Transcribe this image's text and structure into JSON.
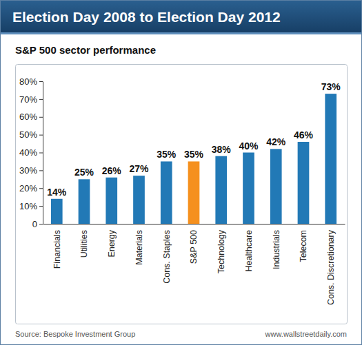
{
  "chart_data": {
    "type": "bar",
    "title": "Election Day 2008 to Election Day 2012",
    "subtitle": "S&P 500 sector performance",
    "categories": [
      "Financials",
      "Utilities",
      "Energy",
      "Materials",
      "Cons. Staples",
      "S&P 500",
      "Technology",
      "Healthcare",
      "Industrials",
      "Telecom",
      "Cons. Discretionary"
    ],
    "values": [
      14,
      25,
      26,
      27,
      35,
      35,
      38,
      40,
      42,
      46,
      73
    ],
    "value_labels": [
      "14%",
      "25%",
      "26%",
      "27%",
      "35%",
      "35%",
      "38%",
      "40%",
      "42%",
      "46%",
      "73%"
    ],
    "colors": [
      "#2279b6",
      "#2279b6",
      "#2279b6",
      "#2279b6",
      "#2279b6",
      "#f5901e",
      "#2279b6",
      "#2279b6",
      "#2279b6",
      "#2279b6",
      "#2279b6"
    ],
    "ylim": [
      0,
      80
    ],
    "yticks": [
      0,
      {
        "value": 10,
        "label": "10%"
      },
      {
        "value": 20,
        "label": "20%"
      },
      {
        "value": 30,
        "label": "30%"
      },
      {
        "value": 40,
        "label": "40%"
      },
      {
        "value": 50,
        "label": "50%"
      },
      {
        "value": 60,
        "label": "60%"
      },
      {
        "value": 70,
        "label": "70%"
      },
      {
        "value": 80,
        "label": "80%"
      }
    ],
    "grid": false,
    "data_labels": true,
    "annotations": [
      "Source: Bespoke Investment Group",
      "www.wallstreetdaily.com"
    ]
  }
}
